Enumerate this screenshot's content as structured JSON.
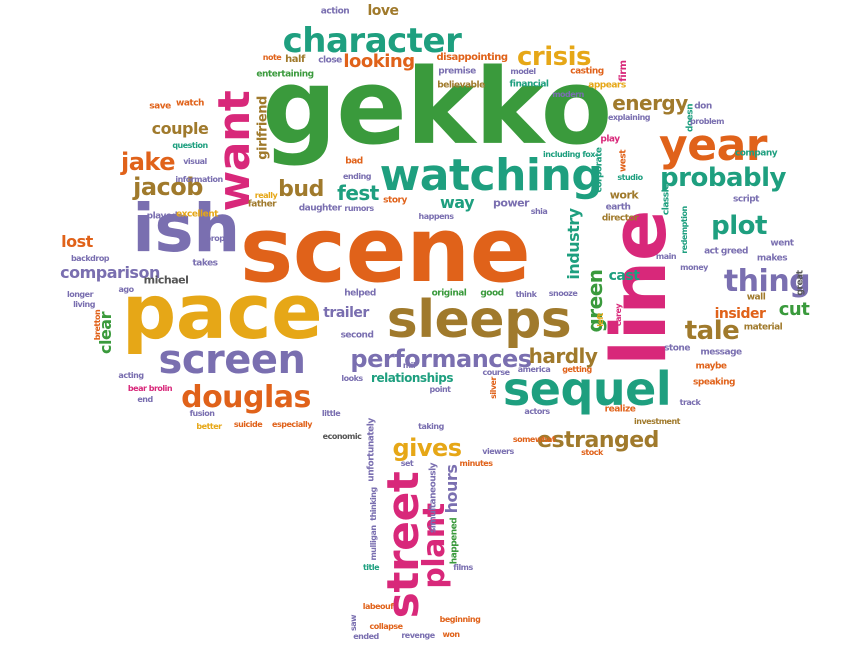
{
  "palette": {
    "green": "#3a9a3c",
    "teal": "#1e9f7f",
    "orange": "#e0621a",
    "gold": "#e6a717",
    "purple": "#7a6fb0",
    "magenta": "#d8287a",
    "brown": "#a07a2c",
    "gray": "#555555"
  },
  "words": [
    {
      "t": "gekko",
      "c": "green"
    },
    {
      "t": "scene",
      "c": "orange"
    },
    {
      "t": "pace",
      "c": "gold"
    },
    {
      "t": "line",
      "c": "magenta"
    },
    {
      "t": "ish",
      "c": "purple"
    },
    {
      "t": "sleeps",
      "c": "brown"
    },
    {
      "t": "watching",
      "c": "teal"
    },
    {
      "t": "sequel",
      "c": "teal"
    },
    {
      "t": "screen",
      "c": "purple"
    },
    {
      "t": "street",
      "c": "magenta"
    },
    {
      "t": "want",
      "c": "magenta"
    },
    {
      "t": "year",
      "c": "orange"
    },
    {
      "t": "character",
      "c": "teal"
    },
    {
      "t": "douglas",
      "c": "orange"
    },
    {
      "t": "performances",
      "c": "purple"
    },
    {
      "t": "plant",
      "c": "magenta"
    },
    {
      "t": "thing",
      "c": "purple"
    },
    {
      "t": "probably",
      "c": "teal"
    },
    {
      "t": "plot",
      "c": "teal"
    },
    {
      "t": "crisis",
      "c": "gold"
    },
    {
      "t": "tale",
      "c": "brown"
    },
    {
      "t": "jake",
      "c": "orange"
    },
    {
      "t": "jacob",
      "c": "brown"
    },
    {
      "t": "gives",
      "c": "gold"
    },
    {
      "t": "estranged",
      "c": "brown"
    },
    {
      "t": "bud",
      "c": "brown"
    },
    {
      "t": "fest",
      "c": "teal"
    },
    {
      "t": "energy",
      "c": "brown"
    },
    {
      "t": "looking",
      "c": "orange"
    },
    {
      "t": "hardly",
      "c": "brown"
    },
    {
      "t": "comparison",
      "c": "purple"
    },
    {
      "t": "couple",
      "c": "brown"
    },
    {
      "t": "lost",
      "c": "orange"
    },
    {
      "t": "green",
      "c": "green"
    },
    {
      "t": "industry",
      "c": "teal"
    },
    {
      "t": "way",
      "c": "teal"
    },
    {
      "t": "love",
      "c": "brown"
    },
    {
      "t": "cut",
      "c": "green"
    },
    {
      "t": "clear",
      "c": "green"
    },
    {
      "t": "hours",
      "c": "purple"
    },
    {
      "t": "girlfriend",
      "c": "brown"
    },
    {
      "t": "trailer",
      "c": "purple"
    },
    {
      "t": "insider",
      "c": "orange"
    },
    {
      "t": "cast",
      "c": "teal"
    },
    {
      "t": "relationships",
      "c": "teal"
    },
    {
      "t": "power",
      "c": "purple"
    },
    {
      "t": "michael",
      "c": "gray"
    },
    {
      "t": "work",
      "c": "brown"
    },
    {
      "t": "action",
      "c": "purple"
    },
    {
      "t": "half",
      "c": "brown"
    },
    {
      "t": "close",
      "c": "purple"
    },
    {
      "t": "note",
      "c": "orange"
    },
    {
      "t": "disappointing",
      "c": "orange"
    },
    {
      "t": "entertaining",
      "c": "green"
    },
    {
      "t": "premise",
      "c": "purple"
    },
    {
      "t": "model",
      "c": "purple"
    },
    {
      "t": "casting",
      "c": "orange"
    },
    {
      "t": "firm",
      "c": "magenta"
    },
    {
      "t": "believable",
      "c": "brown"
    },
    {
      "t": "financial",
      "c": "teal"
    },
    {
      "t": "appears",
      "c": "gold"
    },
    {
      "t": "modern",
      "c": "purple"
    },
    {
      "t": "save",
      "c": "orange"
    },
    {
      "t": "watch",
      "c": "orange"
    },
    {
      "t": "don",
      "c": "purple"
    },
    {
      "t": "doesn",
      "c": "teal"
    },
    {
      "t": "explaining",
      "c": "purple"
    },
    {
      "t": "problem",
      "c": "purple"
    },
    {
      "t": "question",
      "c": "teal"
    },
    {
      "t": "bad",
      "c": "orange"
    },
    {
      "t": "play",
      "c": "magenta"
    },
    {
      "t": "company",
      "c": "teal"
    },
    {
      "t": "information",
      "c": "purple"
    },
    {
      "t": "visual",
      "c": "purple"
    },
    {
      "t": "ending",
      "c": "purple"
    },
    {
      "t": "including fox",
      "c": "teal"
    },
    {
      "t": "corporate",
      "c": "teal"
    },
    {
      "t": "west",
      "c": "orange"
    },
    {
      "t": "script",
      "c": "purple"
    },
    {
      "t": "played",
      "c": "purple"
    },
    {
      "t": "excellent",
      "c": "gold"
    },
    {
      "t": "father",
      "c": "brown"
    },
    {
      "t": "really",
      "c": "gold"
    },
    {
      "t": "daughter",
      "c": "purple"
    },
    {
      "t": "rumors",
      "c": "purple"
    },
    {
      "t": "story",
      "c": "orange"
    },
    {
      "t": "happens",
      "c": "purple"
    },
    {
      "t": "earth",
      "c": "purple"
    },
    {
      "t": "studio",
      "c": "teal"
    },
    {
      "t": "classic",
      "c": "teal"
    },
    {
      "t": "redemption",
      "c": "teal"
    },
    {
      "t": "shia",
      "c": "purple"
    },
    {
      "t": "director",
      "c": "brown"
    },
    {
      "t": "prop",
      "c": "purple"
    },
    {
      "t": "takes",
      "c": "purple"
    },
    {
      "t": "backdrop",
      "c": "purple"
    },
    {
      "t": "ago",
      "c": "purple"
    },
    {
      "t": "longer",
      "c": "purple"
    },
    {
      "t": "living",
      "c": "purple"
    },
    {
      "t": "helped",
      "c": "purple"
    },
    {
      "t": "original",
      "c": "green"
    },
    {
      "t": "good",
      "c": "green"
    },
    {
      "t": "think",
      "c": "purple"
    },
    {
      "t": "snooze",
      "c": "purple"
    },
    {
      "t": "main",
      "c": "purple"
    },
    {
      "t": "money",
      "c": "purple"
    },
    {
      "t": "act greed",
      "c": "purple"
    },
    {
      "t": "went",
      "c": "purple"
    },
    {
      "t": "makes",
      "c": "purple"
    },
    {
      "t": "great",
      "c": "gray"
    },
    {
      "t": "wall",
      "c": "brown"
    },
    {
      "t": "material",
      "c": "brown"
    },
    {
      "t": "second",
      "c": "purple"
    },
    {
      "t": "left",
      "c": "gold"
    },
    {
      "t": "carey",
      "c": "magenta"
    },
    {
      "t": "stone",
      "c": "purple"
    },
    {
      "t": "message",
      "c": "purple"
    },
    {
      "t": "maybe",
      "c": "orange"
    },
    {
      "t": "acting",
      "c": "purple"
    },
    {
      "t": "bear brolin",
      "c": "magenta"
    },
    {
      "t": "end",
      "c": "purple"
    },
    {
      "t": "looks",
      "c": "purple"
    },
    {
      "t": "mil",
      "c": "purple"
    },
    {
      "t": "course",
      "c": "purple"
    },
    {
      "t": "america",
      "c": "purple"
    },
    {
      "t": "getting",
      "c": "orange"
    },
    {
      "t": "speaking",
      "c": "orange"
    },
    {
      "t": "fusion",
      "c": "purple"
    },
    {
      "t": "little",
      "c": "purple"
    },
    {
      "t": "point",
      "c": "purple"
    },
    {
      "t": "silver",
      "c": "orange"
    },
    {
      "t": "actors",
      "c": "purple"
    },
    {
      "t": "realize",
      "c": "orange"
    },
    {
      "t": "track",
      "c": "purple"
    },
    {
      "t": "better",
      "c": "gold"
    },
    {
      "t": "suicide",
      "c": "orange"
    },
    {
      "t": "especially",
      "c": "orange"
    },
    {
      "t": "taking",
      "c": "purple"
    },
    {
      "t": "investment",
      "c": "brown"
    },
    {
      "t": "economic",
      "c": "gray"
    },
    {
      "t": "somewhat",
      "c": "orange"
    },
    {
      "t": "viewers",
      "c": "purple"
    },
    {
      "t": "stock",
      "c": "orange"
    },
    {
      "t": "unfortunately",
      "c": "purple"
    },
    {
      "t": "set",
      "c": "purple"
    },
    {
      "t": "minutes",
      "c": "orange"
    },
    {
      "t": "thinking",
      "c": "purple"
    },
    {
      "t": "simultaneously",
      "c": "purple"
    },
    {
      "t": "happened",
      "c": "green"
    },
    {
      "t": "mulligan",
      "c": "purple"
    },
    {
      "t": "title",
      "c": "teal"
    },
    {
      "t": "films",
      "c": "purple"
    },
    {
      "t": "labeouf",
      "c": "orange"
    },
    {
      "t": "collapse",
      "c": "orange"
    },
    {
      "t": "beginning",
      "c": "orange"
    },
    {
      "t": "saw",
      "c": "purple"
    },
    {
      "t": "ended",
      "c": "purple"
    },
    {
      "t": "revenge",
      "c": "purple"
    },
    {
      "t": "won",
      "c": "orange"
    },
    {
      "t": "bretton",
      "c": "orange"
    }
  ]
}
